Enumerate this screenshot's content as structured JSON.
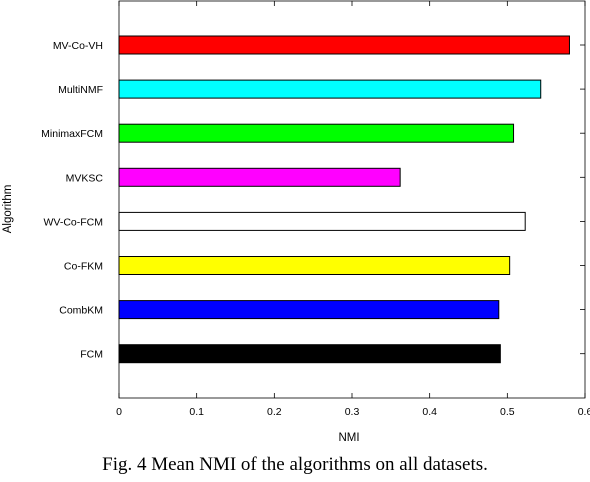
{
  "chart_data": {
    "type": "bar",
    "orientation": "horizontal",
    "xlabel": "NMI",
    "ylabel": "Algorithm",
    "xlim": [
      0,
      0.6
    ],
    "xticks": [
      "0",
      "0.1",
      "0.2",
      "0.3",
      "0.4",
      "0.5",
      "0.6"
    ],
    "grid": false,
    "categories": [
      "MV-Co-VH",
      "MultiNMF",
      "MinimaxFCM",
      "MVKSC",
      "WV-Co-FCM",
      "Co-FKM",
      "CombKM",
      "FCM"
    ],
    "values": [
      0.58,
      0.543,
      0.508,
      0.362,
      0.523,
      0.503,
      0.489,
      0.491
    ],
    "colors": [
      "#ff0000",
      "#00ffff",
      "#00ff00",
      "#ff00ff",
      "#ffffff",
      "#ffff00",
      "#0000ff",
      "#000000"
    ]
  },
  "caption": "Fig. 4 Mean NMI of the algorithms on all datasets."
}
